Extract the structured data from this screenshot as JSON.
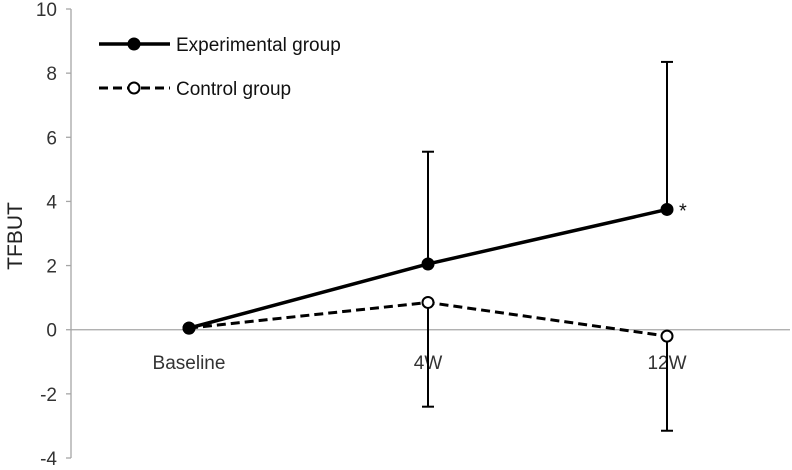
{
  "chart_data": {
    "type": "line",
    "ylabel": "TFBUT",
    "xlabel": "",
    "ylim": [
      -4,
      10
    ],
    "yticks": [
      -4,
      -2,
      0,
      2,
      4,
      6,
      8,
      10
    ],
    "categories": [
      "Baseline",
      "4W",
      "12W"
    ],
    "series": [
      {
        "name": "Experimental group",
        "values": [
          0.05,
          2.05,
          3.75
        ],
        "error_upper": [
          null,
          5.55,
          8.35
        ],
        "error_lower": [
          null,
          null,
          null
        ],
        "line_style": "solid",
        "marker": "filled-circle"
      },
      {
        "name": "Control group",
        "values": [
          0.05,
          0.85,
          -0.2
        ],
        "error_upper": [
          null,
          null,
          null
        ],
        "error_lower": [
          null,
          -2.4,
          -3.15
        ],
        "line_style": "dashed",
        "marker": "open-circle"
      }
    ],
    "annotations": [
      {
        "text": "*",
        "category": "12W",
        "series": "Experimental group"
      }
    ],
    "legend_position": "top-left",
    "grid": false,
    "colors": {
      "line": "#000000",
      "axis": "#a6a6a6",
      "text": "#333333"
    }
  }
}
